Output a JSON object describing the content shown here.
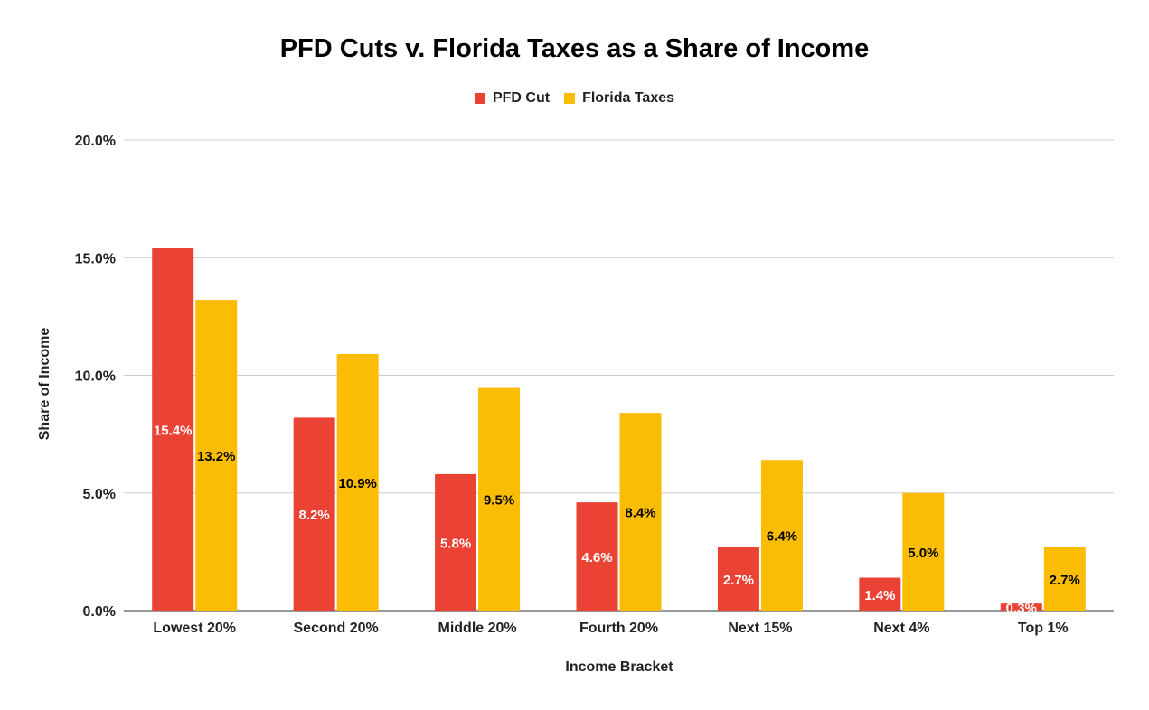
{
  "chart_data": {
    "type": "bar",
    "title": "PFD Cuts v. Florida Taxes as a Share of Income",
    "xlabel": "Income Bracket",
    "ylabel": "Share of Income",
    "categories": [
      "Lowest 20%",
      "Second 20%",
      "Middle 20%",
      "Fourth 20%",
      "Next 15%",
      "Next 4%",
      "Top 1%"
    ],
    "series": [
      {
        "name": "PFD Cut",
        "color": "#ea4335",
        "label_color": "#ffffff",
        "values": [
          15.4,
          8.2,
          5.8,
          4.6,
          2.7,
          1.4,
          0.3
        ],
        "labels": [
          "15.4%",
          "8.2%",
          "5.8%",
          "4.6%",
          "2.7%",
          "1.4%",
          "0.3%"
        ]
      },
      {
        "name": "Florida Taxes",
        "color": "#fbbc04",
        "label_color": "#000000",
        "values": [
          13.2,
          10.9,
          9.5,
          8.4,
          6.4,
          5.0,
          2.7
        ],
        "labels": [
          "13.2%",
          "10.9%",
          "9.5%",
          "8.4%",
          "6.4%",
          "5.0%",
          "2.7%"
        ]
      }
    ],
    "ylim": [
      0,
      20
    ],
    "yticks": [
      0,
      5,
      10,
      15,
      20
    ],
    "ytick_labels": [
      "0.0%",
      "5.0%",
      "10.0%",
      "15.0%",
      "20.0%"
    ],
    "grid": true,
    "legend_position": "top-center"
  }
}
